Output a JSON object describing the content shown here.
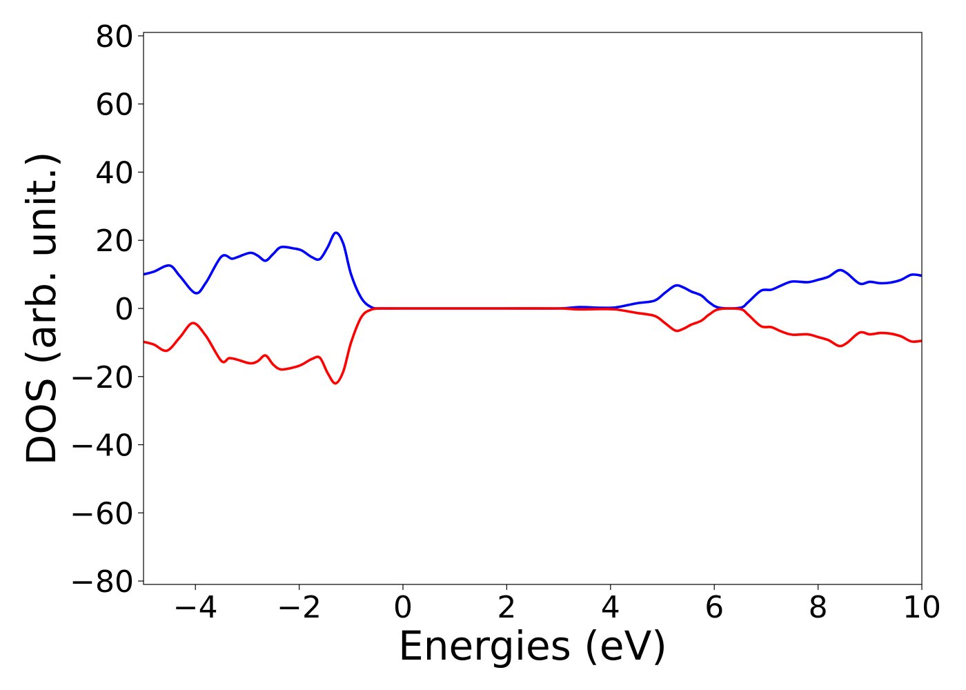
{
  "chart_data": {
    "type": "line",
    "title": "",
    "xlabel": "Energies (eV)",
    "ylabel": "DOS (arb. unit.)",
    "xlim": [
      -5,
      10
    ],
    "ylim": [
      -81,
      81
    ],
    "xticks": [
      -4,
      -2,
      0,
      2,
      4,
      6,
      8,
      10
    ],
    "yticks": [
      -80,
      -60,
      -40,
      -20,
      0,
      20,
      40,
      60,
      80
    ],
    "xtick_labels": [
      "−4",
      "−2",
      "0",
      "2",
      "4",
      "6",
      "8",
      "10"
    ],
    "ytick_labels": [
      "−80",
      "−60",
      "−40",
      "−20",
      "0",
      "20",
      "40",
      "60",
      "80"
    ],
    "grid": false,
    "legend": "none",
    "series": [
      {
        "color": "#0000ff",
        "points": [
          [
            -5.0,
            10.0
          ],
          [
            -4.8,
            10.8
          ],
          [
            -4.5,
            12.6
          ],
          [
            -4.3,
            9.5
          ],
          [
            -4.0,
            4.5
          ],
          [
            -3.8,
            7.5
          ],
          [
            -3.5,
            15.2
          ],
          [
            -3.3,
            14.6
          ],
          [
            -3.2,
            15.0
          ],
          [
            -2.95,
            16.3
          ],
          [
            -2.8,
            15.5
          ],
          [
            -2.65,
            14.0
          ],
          [
            -2.5,
            16.0
          ],
          [
            -2.35,
            18.0
          ],
          [
            -2.1,
            17.6
          ],
          [
            -1.95,
            17.0
          ],
          [
            -1.75,
            15.0
          ],
          [
            -1.6,
            14.5
          ],
          [
            -1.45,
            18.0
          ],
          [
            -1.3,
            22.2
          ],
          [
            -1.15,
            19.0
          ],
          [
            -1.0,
            10.0
          ],
          [
            -0.8,
            3.0
          ],
          [
            -0.6,
            0.3
          ],
          [
            -0.4,
            0.0
          ],
          [
            0.0,
            0.0
          ],
          [
            2.0,
            0.0
          ],
          [
            3.0,
            0.0
          ],
          [
            3.4,
            0.4
          ],
          [
            3.8,
            0.2
          ],
          [
            4.1,
            0.3
          ],
          [
            4.5,
            1.5
          ],
          [
            4.85,
            2.3
          ],
          [
            5.05,
            4.6
          ],
          [
            5.25,
            6.7
          ],
          [
            5.4,
            6.2
          ],
          [
            5.55,
            5.0
          ],
          [
            5.75,
            3.8
          ],
          [
            5.9,
            1.8
          ],
          [
            6.1,
            0.2
          ],
          [
            6.5,
            0.2
          ],
          [
            6.65,
            1.8
          ],
          [
            6.9,
            5.2
          ],
          [
            7.1,
            5.5
          ],
          [
            7.3,
            6.8
          ],
          [
            7.5,
            7.9
          ],
          [
            7.8,
            7.7
          ],
          [
            8.0,
            8.4
          ],
          [
            8.2,
            9.3
          ],
          [
            8.4,
            11.2
          ],
          [
            8.55,
            10.4
          ],
          [
            8.8,
            7.3
          ],
          [
            9.0,
            7.8
          ],
          [
            9.2,
            7.4
          ],
          [
            9.4,
            7.6
          ],
          [
            9.6,
            8.4
          ],
          [
            9.8,
            9.9
          ],
          [
            10.0,
            9.6
          ]
        ]
      },
      {
        "color": "#ff0000",
        "points": [
          [
            -5.0,
            -9.8
          ],
          [
            -4.8,
            -10.6
          ],
          [
            -4.55,
            -12.4
          ],
          [
            -4.3,
            -8.5
          ],
          [
            -4.05,
            -4.3
          ],
          [
            -3.8,
            -8.0
          ],
          [
            -3.5,
            -15.4
          ],
          [
            -3.35,
            -14.6
          ],
          [
            -3.2,
            -15.0
          ],
          [
            -2.95,
            -16.1
          ],
          [
            -2.8,
            -15.5
          ],
          [
            -2.65,
            -13.8
          ],
          [
            -2.5,
            -16.5
          ],
          [
            -2.35,
            -17.9
          ],
          [
            -2.1,
            -17.3
          ],
          [
            -1.95,
            -16.5
          ],
          [
            -1.75,
            -14.8
          ],
          [
            -1.6,
            -14.5
          ],
          [
            -1.45,
            -19.0
          ],
          [
            -1.3,
            -22.0
          ],
          [
            -1.15,
            -18.5
          ],
          [
            -1.0,
            -10.0
          ],
          [
            -0.8,
            -2.5
          ],
          [
            -0.6,
            -0.3
          ],
          [
            -0.4,
            0.0
          ],
          [
            0.0,
            0.0
          ],
          [
            2.0,
            0.0
          ],
          [
            3.0,
            0.0
          ],
          [
            3.4,
            -0.3
          ],
          [
            3.8,
            -0.2
          ],
          [
            4.1,
            -0.3
          ],
          [
            4.5,
            -1.3
          ],
          [
            4.85,
            -2.2
          ],
          [
            5.05,
            -4.3
          ],
          [
            5.25,
            -6.5
          ],
          [
            5.4,
            -6.0
          ],
          [
            5.55,
            -4.8
          ],
          [
            5.75,
            -3.6
          ],
          [
            5.9,
            -1.8
          ],
          [
            6.1,
            -0.2
          ],
          [
            6.5,
            -0.2
          ],
          [
            6.65,
            -1.8
          ],
          [
            6.9,
            -5.2
          ],
          [
            7.1,
            -5.5
          ],
          [
            7.3,
            -6.8
          ],
          [
            7.5,
            -7.7
          ],
          [
            7.8,
            -7.6
          ],
          [
            8.0,
            -8.4
          ],
          [
            8.2,
            -9.3
          ],
          [
            8.4,
            -11.0
          ],
          [
            8.55,
            -10.2
          ],
          [
            8.8,
            -7.1
          ],
          [
            9.0,
            -7.6
          ],
          [
            9.2,
            -7.2
          ],
          [
            9.4,
            -7.4
          ],
          [
            9.6,
            -8.2
          ],
          [
            9.8,
            -9.7
          ],
          [
            10.0,
            -9.5
          ]
        ]
      }
    ]
  }
}
